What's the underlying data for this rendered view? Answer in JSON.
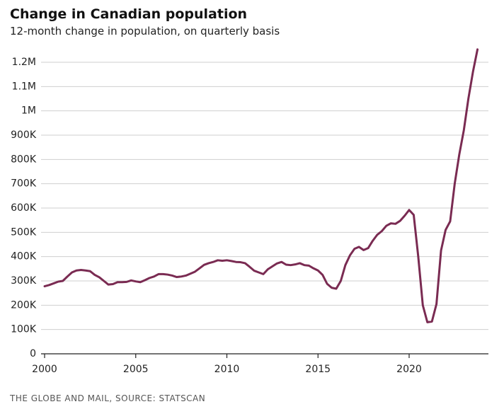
{
  "chart_data": {
    "type": "line",
    "title": "Change in Canadian population",
    "subtitle": "12-month change in population, on quarterly basis",
    "source": "THE GLOBE AND MAIL, SOURCE: STATSCAN",
    "color": "#7a2b52",
    "grid": true,
    "xlim": [
      2000,
      2024.35
    ],
    "xticks": [
      2000,
      2005,
      2010,
      2015,
      2020
    ],
    "ylim": [
      0,
      1200000
    ],
    "yticks": [
      0,
      {
        "value": 100000,
        "label": "100K"
      },
      {
        "value": 200000,
        "label": "200K"
      },
      {
        "value": 300000,
        "label": "300K"
      },
      {
        "value": 400000,
        "label": "400K"
      },
      {
        "value": 500000,
        "label": "500K"
      },
      {
        "value": 600000,
        "label": "600K"
      },
      {
        "value": 700000,
        "label": "700K"
      },
      {
        "value": 800000,
        "label": "800K"
      },
      {
        "value": 900000,
        "label": "900K"
      },
      {
        "value": 1000000,
        "label": "1M"
      },
      {
        "value": 1100000,
        "label": "1.1M"
      },
      {
        "value": 1200000,
        "label": "1.2M"
      }
    ],
    "x": [
      2000,
      2000.25,
      2000.5,
      2000.75,
      2001,
      2001.25,
      2001.5,
      2001.75,
      2002,
      2002.25,
      2002.5,
      2002.75,
      2003,
      2003.25,
      2003.5,
      2003.75,
      2004,
      2004.25,
      2004.5,
      2004.75,
      2005,
      2005.25,
      2005.5,
      2005.75,
      2006,
      2006.25,
      2006.5,
      2006.75,
      2007,
      2007.25,
      2007.5,
      2007.75,
      2008,
      2008.25,
      2008.5,
      2008.75,
      2009,
      2009.25,
      2009.5,
      2009.75,
      2010,
      2010.25,
      2010.5,
      2010.75,
      2011,
      2011.25,
      2011.5,
      2011.75,
      2012,
      2012.25,
      2012.5,
      2012.75,
      2013,
      2013.25,
      2013.5,
      2013.75,
      2014,
      2014.25,
      2014.5,
      2014.75,
      2015,
      2015.25,
      2015.5,
      2015.75,
      2016,
      2016.25,
      2016.5,
      2016.75,
      2017,
      2017.25,
      2017.5,
      2017.75,
      2018,
      2018.25,
      2018.5,
      2018.75,
      2019,
      2019.25,
      2019.5,
      2019.75,
      2020,
      2020.25,
      2020.5,
      2020.75,
      2021,
      2021.25,
      2021.5,
      2021.75,
      2022,
      2022.25,
      2022.5,
      2022.75,
      2023,
      2023.25,
      2023.5,
      2023.75
    ],
    "values": [
      278000,
      283000,
      290000,
      297000,
      300000,
      318000,
      335000,
      343000,
      345000,
      343000,
      340000,
      325000,
      315000,
      300000,
      285000,
      287000,
      295000,
      295000,
      296000,
      302000,
      298000,
      295000,
      303000,
      312000,
      318000,
      328000,
      328000,
      326000,
      322000,
      316000,
      318000,
      322000,
      330000,
      338000,
      352000,
      366000,
      373000,
      378000,
      385000,
      383000,
      385000,
      382000,
      378000,
      377000,
      373000,
      358000,
      342000,
      335000,
      328000,
      348000,
      360000,
      372000,
      378000,
      367000,
      365000,
      368000,
      373000,
      365000,
      363000,
      352000,
      343000,
      325000,
      288000,
      272000,
      268000,
      300000,
      365000,
      405000,
      432000,
      440000,
      427000,
      435000,
      465000,
      490000,
      505000,
      527000,
      537000,
      535000,
      547000,
      568000,
      592000,
      572000,
      400000,
      200000,
      130000,
      133000,
      205000,
      425000,
      510000,
      545000,
      700000,
      820000,
      920000,
      1050000,
      1160000,
      1253000
    ]
  }
}
